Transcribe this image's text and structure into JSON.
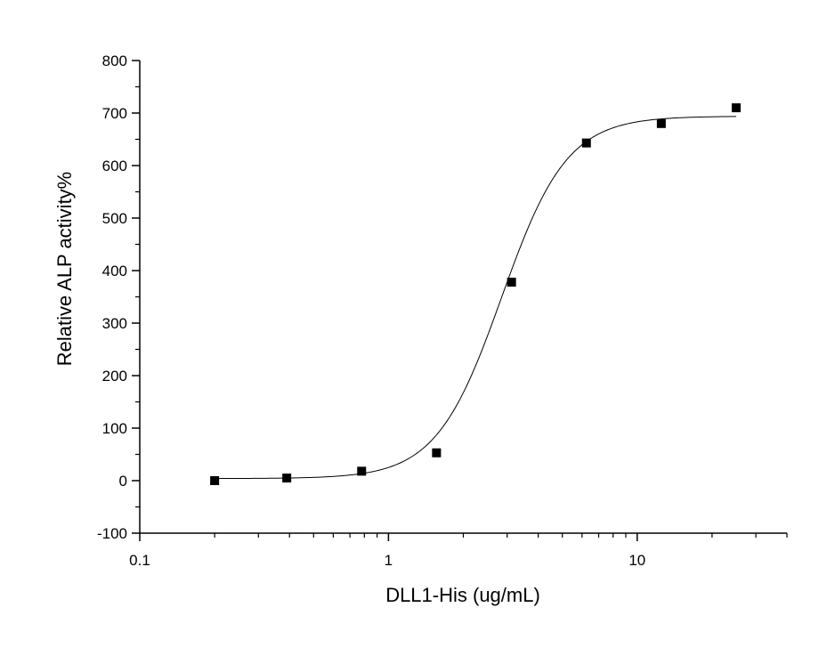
{
  "chart_data": {
    "type": "scatter",
    "xlabel": "DLL1-His (ug/mL)",
    "ylabel": "Relative ALP activity%",
    "xscale": "log",
    "xlim": [
      0.1,
      40
    ],
    "ylim": [
      -100,
      800
    ],
    "x_ticks": [
      {
        "value": 0.1,
        "label": "0.1"
      },
      {
        "value": 1,
        "label": "1"
      },
      {
        "value": 10,
        "label": "10"
      }
    ],
    "y_ticks": [
      {
        "value": -100,
        "label": "-100"
      },
      {
        "value": 0,
        "label": "0"
      },
      {
        "value": 100,
        "label": "100"
      },
      {
        "value": 200,
        "label": "200"
      },
      {
        "value": 300,
        "label": "300"
      },
      {
        "value": 400,
        "label": "400"
      },
      {
        "value": 500,
        "label": "500"
      },
      {
        "value": 600,
        "label": "600"
      },
      {
        "value": 700,
        "label": "700"
      },
      {
        "value": 800,
        "label": "800"
      }
    ],
    "series": [
      {
        "marker": "square",
        "color": "#000000",
        "x": [
          0.2,
          0.39,
          0.78,
          1.56,
          3.125,
          6.25,
          12.5,
          25
        ],
        "y": [
          0,
          5,
          18,
          53,
          378,
          643,
          680,
          710
        ]
      }
    ],
    "fit_curve": {
      "model": "4-parameter logistic",
      "color": "#000000",
      "bottom": 4,
      "top": 694,
      "ec50": 2.85,
      "hill": 3.3,
      "x_range": [
        0.2,
        25
      ]
    },
    "grid": false,
    "legend": "none"
  }
}
